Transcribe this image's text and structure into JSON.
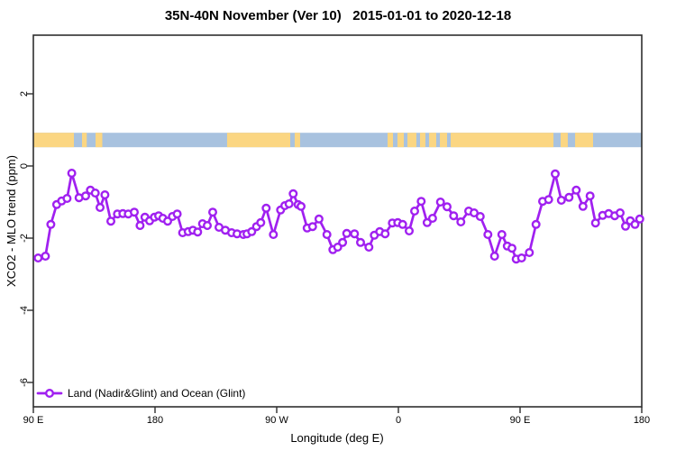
{
  "chart_data": {
    "type": "line",
    "title": "35N-40N November (Ver 10)   2015-01-01 to 2020-12-18",
    "xlabel": "Longitude (deg E)",
    "ylabel": "XCO2 - MLO trend (ppm)",
    "xlim": [
      90,
      540
    ],
    "ylim": [
      -6.7,
      3.6
    ],
    "grid": false,
    "legend_position": "bottom-left-inside",
    "x_ticks": [
      {
        "lon": 90,
        "label": "90 E"
      },
      {
        "lon": 180,
        "label": "180"
      },
      {
        "lon": 270,
        "label": "90 W"
      },
      {
        "lon": 360,
        "label": "0"
      },
      {
        "lon": 450,
        "label": "90 E"
      },
      {
        "lon": 540,
        "label": "180"
      }
    ],
    "y_ticks": [
      {
        "value": 2,
        "label": "2"
      },
      {
        "value": 0,
        "label": "0"
      },
      {
        "value": -2,
        "label": "-2"
      },
      {
        "value": -4,
        "label": "-4"
      },
      {
        "value": -6,
        "label": "-6"
      }
    ],
    "land_ocean_band": {
      "land_color": "#FBD682",
      "ocean_color": "#A8C2DF",
      "v_center": 0.72,
      "v_halfwidth": 0.2,
      "land_segments_lon": [
        [
          90,
          120
        ],
        [
          126,
          129.5
        ],
        [
          136,
          141
        ],
        [
          233.3,
          280
        ],
        [
          283.3,
          287.3
        ],
        [
          352,
          356
        ],
        [
          359.3,
          364
        ],
        [
          366.7,
          373.3
        ],
        [
          376,
          380
        ],
        [
          382.7,
          388
        ],
        [
          390.7,
          396
        ],
        [
          398.7,
          474.7
        ],
        [
          480,
          485.3
        ],
        [
          490.7,
          504
        ]
      ]
    },
    "series": [
      {
        "name": "Land (Nadir&Glint) and Ocean (Glint)",
        "color": "#A020F0",
        "marker": "open-circle",
        "points": [
          [
            93.5,
            -2.55
          ],
          [
            98.9,
            -2.5
          ],
          [
            102.9,
            -1.62
          ],
          [
            107.3,
            -1.07
          ],
          [
            110.9,
            -0.97
          ],
          [
            114.9,
            -0.9
          ],
          [
            118.4,
            -0.2
          ],
          [
            123.8,
            -0.88
          ],
          [
            128.7,
            -0.83
          ],
          [
            132.2,
            -0.67
          ],
          [
            135.8,
            -0.75
          ],
          [
            139.3,
            -1.15
          ],
          [
            142.9,
            -0.8
          ],
          [
            147.3,
            -1.53
          ],
          [
            152.2,
            -1.33
          ],
          [
            156.2,
            -1.32
          ],
          [
            160.2,
            -1.33
          ],
          [
            164.7,
            -1.28
          ],
          [
            168.9,
            -1.65
          ],
          [
            172.5,
            -1.42
          ],
          [
            176,
            -1.52
          ],
          [
            179.5,
            -1.42
          ],
          [
            182.7,
            -1.38
          ],
          [
            185.8,
            -1.45
          ],
          [
            189.3,
            -1.53
          ],
          [
            192.9,
            -1.4
          ],
          [
            196.4,
            -1.33
          ],
          [
            200.4,
            -1.85
          ],
          [
            204.5,
            -1.82
          ],
          [
            208,
            -1.78
          ],
          [
            211.5,
            -1.83
          ],
          [
            215.1,
            -1.6
          ],
          [
            218.7,
            -1.65
          ],
          [
            222.7,
            -1.28
          ],
          [
            227.3,
            -1.7
          ],
          [
            232,
            -1.78
          ],
          [
            236.7,
            -1.85
          ],
          [
            240.7,
            -1.88
          ],
          [
            245.3,
            -1.9
          ],
          [
            248,
            -1.88
          ],
          [
            251.5,
            -1.82
          ],
          [
            255.1,
            -1.68
          ],
          [
            258.2,
            -1.57
          ],
          [
            262.2,
            -1.17
          ],
          [
            267.5,
            -1.9
          ],
          [
            272.9,
            -1.22
          ],
          [
            276,
            -1.1
          ],
          [
            279.1,
            -1.05
          ],
          [
            282.2,
            -0.77
          ],
          [
            285.8,
            -1.07
          ],
          [
            288,
            -1.12
          ],
          [
            292.5,
            -1.72
          ],
          [
            296.5,
            -1.68
          ],
          [
            301.3,
            -1.47
          ],
          [
            307.1,
            -1.9
          ],
          [
            311.5,
            -2.32
          ],
          [
            315.1,
            -2.25
          ],
          [
            318.7,
            -2.12
          ],
          [
            321.8,
            -1.87
          ],
          [
            327.5,
            -1.88
          ],
          [
            332,
            -2.12
          ],
          [
            338.2,
            -2.25
          ],
          [
            342.2,
            -1.92
          ],
          [
            346.2,
            -1.82
          ],
          [
            350.2,
            -1.88
          ],
          [
            355.5,
            -1.58
          ],
          [
            359.5,
            -1.57
          ],
          [
            363.1,
            -1.62
          ],
          [
            368,
            -1.8
          ],
          [
            372,
            -1.25
          ],
          [
            376.9,
            -0.98
          ],
          [
            381.3,
            -1.57
          ],
          [
            385.3,
            -1.45
          ],
          [
            391.1,
            -1.0
          ],
          [
            396,
            -1.13
          ],
          [
            400.9,
            -1.38
          ],
          [
            406.2,
            -1.55
          ],
          [
            412,
            -1.25
          ],
          [
            416,
            -1.3
          ],
          [
            420.5,
            -1.4
          ],
          [
            426.2,
            -1.9
          ],
          [
            431.1,
            -2.5
          ],
          [
            436.5,
            -1.9
          ],
          [
            440.5,
            -2.22
          ],
          [
            444,
            -2.28
          ],
          [
            447.1,
            -2.58
          ],
          [
            451.1,
            -2.55
          ],
          [
            456.9,
            -2.4
          ],
          [
            461.8,
            -1.62
          ],
          [
            466.7,
            -0.98
          ],
          [
            471.1,
            -0.93
          ],
          [
            476,
            -0.22
          ],
          [
            480.5,
            -0.95
          ],
          [
            486.2,
            -0.87
          ],
          [
            491.5,
            -0.67
          ],
          [
            496.5,
            -1.12
          ],
          [
            501.8,
            -0.83
          ],
          [
            505.8,
            -1.58
          ],
          [
            511.1,
            -1.37
          ],
          [
            515.5,
            -1.32
          ],
          [
            520,
            -1.38
          ],
          [
            524,
            -1.3
          ],
          [
            528,
            -1.67
          ],
          [
            531.5,
            -1.52
          ],
          [
            535,
            -1.62
          ],
          [
            538.5,
            -1.47
          ]
        ]
      }
    ]
  }
}
